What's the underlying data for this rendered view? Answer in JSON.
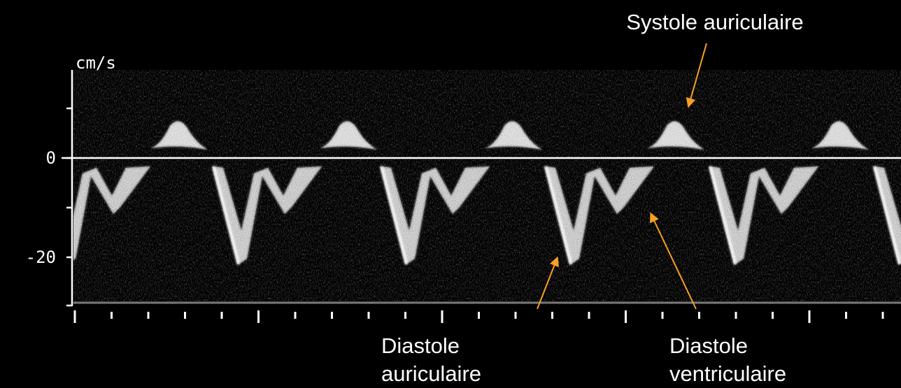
{
  "axis": {
    "unit": "cm/s",
    "labels": [
      "0",
      "-20"
    ]
  },
  "annotations": [
    {
      "lines": [
        "Systole auriculaire"
      ]
    },
    {
      "lines": [
        "Diastole",
        "auriculaire"
      ]
    },
    {
      "lines": [
        "Diastole",
        "ventriculaire"
      ]
    }
  ]
}
